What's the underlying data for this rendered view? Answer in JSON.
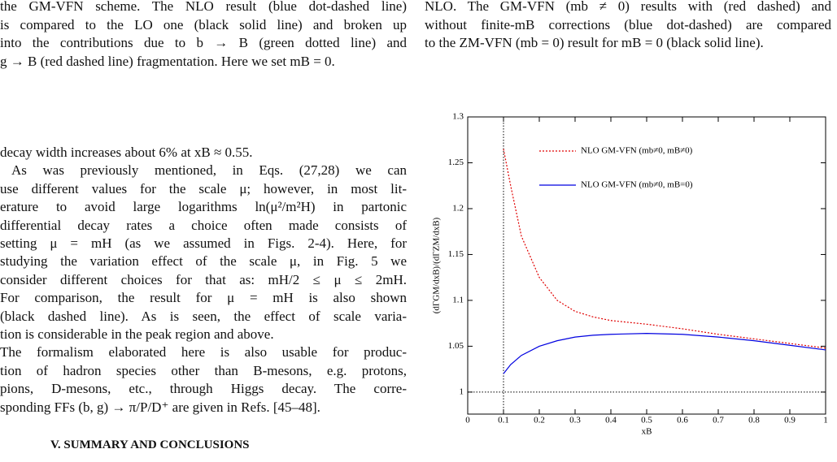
{
  "left_top": [
    "the GM-VFN scheme. The NLO result (blue dot-dashed line)",
    "is compared to the LO one (black solid line) and broken up",
    "into the contributions due to b → B (green dotted line) and",
    "g → B (red dashed line) fragmentation. Here we set mB = 0."
  ],
  "left_body": [
    "decay width increases about 6% at xB ≈ 0.55.",
    "As was previously mentioned, in Eqs. (27,28) we can",
    "use different values for the scale μ; however, in most lit-",
    "erature to avoid large logarithms ln(μ²/m²H) in partonic",
    "differential decay rates a choice often made consists of",
    "setting μ = mH (as we assumed in Figs. 2-4). Here, for",
    "studying the variation effect of the scale μ, in Fig. 5 we",
    "consider different choices for that as: mH/2 ≤ μ ≤ 2mH.",
    "For comparison, the result for μ = mH is also shown",
    "(black dashed line). As is seen, the effect of scale varia-",
    "tion is considerable in the peak region and above.",
    "The formalism elaborated here is also usable for produc-",
    "tion of hadron species other than B-mesons, e.g. protons,",
    "pions, D-mesons, etc., through Higgs decay. The corre-",
    "sponding FFs (b, g) → π/P/D⁺ are given in Refs. [45–48]."
  ],
  "section_heading": "V.   SUMMARY AND CONCLUSIONS",
  "right_top": [
    "NLO. The GM-VFN (mb ≠ 0) results with (red dashed) and",
    "without finite-mB corrections (blue dot-dashed) are compared",
    "to the ZM-VFN (mb = 0) result for mB = 0 (black solid line)."
  ],
  "chart_data": {
    "type": "line",
    "x_label": "xB",
    "y_label": "(dΓGM/dxB)/(dΓZM/dxB)",
    "xlim": [
      0,
      1
    ],
    "ylim": [
      0.976,
      1.3
    ],
    "xticks": [
      0,
      0.1,
      0.2,
      0.3,
      0.4,
      0.5,
      0.6,
      0.7,
      0.8,
      0.9,
      1
    ],
    "yticks": [
      1,
      1.05,
      1.1,
      1.15,
      1.2,
      1.25,
      1.3
    ],
    "vlines": [
      0.1
    ],
    "hlines": [
      1
    ],
    "x": [
      0.1,
      0.12,
      0.15,
      0.2,
      0.25,
      0.3,
      0.35,
      0.4,
      0.5,
      0.6,
      0.7,
      0.8,
      0.9,
      1.0
    ],
    "series": [
      {
        "name": "NLO GM-VFN (mb≠0, mB≠0)",
        "color": "#e00000",
        "style": "dotted",
        "values": [
          1.265,
          1.225,
          1.17,
          1.125,
          1.1,
          1.088,
          1.082,
          1.078,
          1.074,
          1.069,
          1.063,
          1.058,
          1.053,
          1.048
        ]
      },
      {
        "name": "NLO GM-VFN (mb≠0, mB=0)",
        "color": "#0000e0",
        "style": "solid",
        "values": [
          1.02,
          1.03,
          1.04,
          1.05,
          1.056,
          1.06,
          1.062,
          1.063,
          1.064,
          1.063,
          1.06,
          1.056,
          1.051,
          1.046
        ]
      }
    ]
  }
}
